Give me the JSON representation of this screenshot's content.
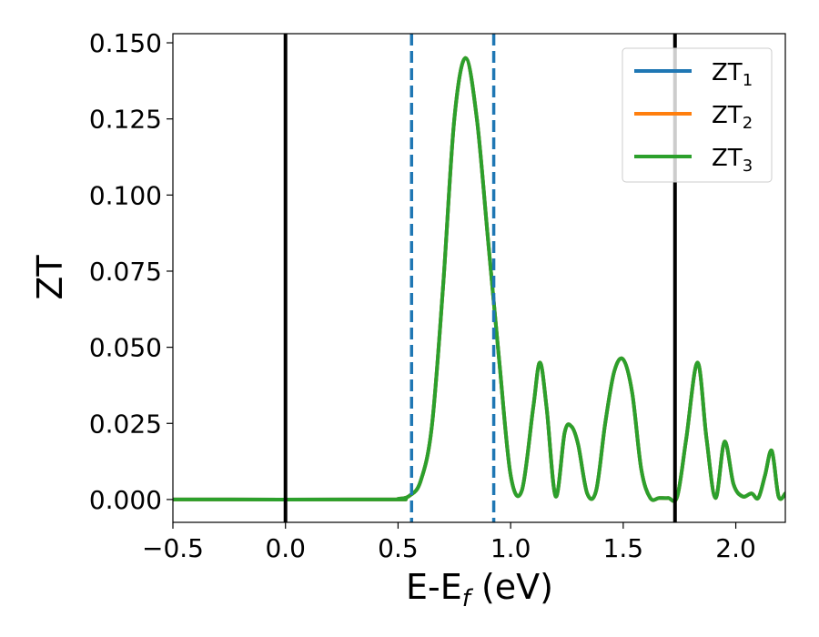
{
  "chart_data": {
    "type": "line",
    "xlabel": "E-E",
    "xlabel_sub": "f",
    "xlabel_unit": " (eV)",
    "ylabel": "ZT",
    "xlim": [
      -0.5,
      2.22
    ],
    "ylim": [
      -0.0075,
      0.153
    ],
    "grid": false,
    "legend_position": "top-right",
    "xticks": [
      -0.5,
      0.0,
      0.5,
      1.0,
      1.5,
      2.0
    ],
    "xtick_labels": [
      "−0.5",
      "0.0",
      "0.5",
      "1.0",
      "1.5",
      "2.0"
    ],
    "yticks": [
      0.0,
      0.025,
      0.05,
      0.075,
      0.1,
      0.125,
      0.15
    ],
    "ytick_labels": [
      "0.000",
      "0.025",
      "0.050",
      "0.075",
      "0.100",
      "0.125",
      "0.150"
    ],
    "colors": {
      "zt1": "#1f77b4",
      "zt2": "#ff7f0e",
      "zt3": "#2ca02c",
      "vline": "#000000"
    },
    "vertical_lines": [
      {
        "x": 0.0,
        "color": "#000000",
        "style": "solid"
      },
      {
        "x": 1.73,
        "color": "#000000",
        "style": "solid"
      },
      {
        "x": 0.56,
        "color": "#1f77b4",
        "style": "dashed"
      },
      {
        "x": 0.925,
        "color": "#1f77b4",
        "style": "dashed"
      }
    ],
    "series": [
      {
        "name": "ZT",
        "sub": "1",
        "color": "#1f77b4",
        "x": [
          -0.5,
          0.45,
          0.5,
          0.55,
          0.6,
          0.65,
          0.7,
          0.75,
          0.8,
          0.85,
          0.9,
          0.95,
          1.0,
          1.05,
          1.1,
          1.13,
          1.16,
          1.2,
          1.24,
          1.27,
          1.3,
          1.34,
          1.38,
          1.42,
          1.46,
          1.5,
          1.54,
          1.58,
          1.62,
          1.66,
          1.7,
          1.74,
          1.78,
          1.83,
          1.87,
          1.91,
          1.95,
          1.99,
          2.03,
          2.07,
          2.1,
          2.13,
          2.16,
          2.19,
          2.22
        ],
        "values": [
          0.0,
          0.0,
          0.0002,
          0.0012,
          0.006,
          0.024,
          0.07,
          0.125,
          0.145,
          0.125,
          0.085,
          0.045,
          0.008,
          0.003,
          0.03,
          0.045,
          0.03,
          0.001,
          0.022,
          0.024,
          0.018,
          0.002,
          0.003,
          0.025,
          0.042,
          0.046,
          0.035,
          0.01,
          0.0005,
          0.0005,
          0.0005,
          0.001,
          0.02,
          0.045,
          0.02,
          0.0005,
          0.019,
          0.005,
          0.001,
          0.002,
          0.0005,
          0.008,
          0.016,
          0.001,
          0.002
        ]
      },
      {
        "name": "ZT",
        "sub": "2",
        "color": "#ff7f0e",
        "x": [
          -0.5,
          0.45,
          0.5,
          0.55,
          0.6,
          0.65,
          0.7,
          0.75,
          0.8,
          0.85,
          0.9,
          0.95,
          1.0,
          1.05,
          1.1,
          1.13,
          1.16,
          1.2,
          1.24,
          1.27,
          1.3,
          1.34,
          1.38,
          1.42,
          1.46,
          1.5,
          1.54,
          1.58,
          1.62,
          1.66,
          1.7,
          1.74,
          1.78,
          1.83,
          1.87,
          1.91,
          1.95,
          1.99,
          2.03,
          2.07,
          2.1,
          2.13,
          2.16,
          2.19,
          2.22
        ],
        "values": [
          0.0,
          0.0,
          0.0002,
          0.0012,
          0.006,
          0.024,
          0.07,
          0.125,
          0.145,
          0.125,
          0.085,
          0.045,
          0.008,
          0.003,
          0.03,
          0.045,
          0.03,
          0.001,
          0.022,
          0.024,
          0.018,
          0.002,
          0.003,
          0.025,
          0.042,
          0.046,
          0.035,
          0.01,
          0.0005,
          0.0005,
          0.0005,
          0.001,
          0.02,
          0.045,
          0.02,
          0.0005,
          0.019,
          0.005,
          0.001,
          0.002,
          0.0005,
          0.008,
          0.016,
          0.001,
          0.002
        ]
      },
      {
        "name": "ZT",
        "sub": "3",
        "color": "#2ca02c",
        "x": [
          -0.5,
          0.45,
          0.5,
          0.55,
          0.6,
          0.65,
          0.7,
          0.75,
          0.8,
          0.85,
          0.9,
          0.95,
          1.0,
          1.05,
          1.1,
          1.13,
          1.16,
          1.2,
          1.24,
          1.27,
          1.3,
          1.34,
          1.38,
          1.42,
          1.46,
          1.5,
          1.54,
          1.58,
          1.62,
          1.66,
          1.7,
          1.74,
          1.78,
          1.83,
          1.87,
          1.91,
          1.95,
          1.99,
          2.03,
          2.07,
          2.1,
          2.13,
          2.16,
          2.19,
          2.22
        ],
        "values": [
          0.0,
          0.0,
          0.0002,
          0.0012,
          0.006,
          0.024,
          0.07,
          0.125,
          0.145,
          0.125,
          0.085,
          0.045,
          0.008,
          0.003,
          0.03,
          0.045,
          0.03,
          0.001,
          0.022,
          0.024,
          0.018,
          0.002,
          0.003,
          0.025,
          0.042,
          0.046,
          0.035,
          0.01,
          0.0005,
          0.0005,
          0.0005,
          0.001,
          0.02,
          0.045,
          0.02,
          0.0005,
          0.019,
          0.005,
          0.001,
          0.002,
          0.0005,
          0.008,
          0.016,
          0.001,
          0.002
        ]
      }
    ]
  }
}
